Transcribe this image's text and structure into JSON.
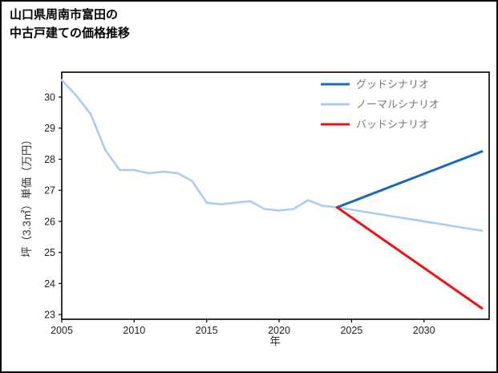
{
  "title": {
    "line1": "山口県周南市富田の",
    "line2": "中古戸建ての価格推移"
  },
  "chart_data": {
    "type": "line",
    "title": "山口県周南市富田の中古戸建ての価格推移",
    "xlabel": "年",
    "ylabel": "坪（3.3㎡）単価（万円）",
    "xlim": [
      2005,
      2034.5
    ],
    "ylim": [
      22.85,
      30.8
    ],
    "xticks": [
      2005,
      2010,
      2015,
      2020,
      2025,
      2030
    ],
    "yticks": [
      23,
      24,
      25,
      26,
      27,
      28,
      29,
      30
    ],
    "grid": false,
    "legend_position": "upper right",
    "series": [
      {
        "id": "normal",
        "name": "ノーマルシナリオ",
        "color": "#a9cdf2",
        "width": 2.6,
        "x": [
          2005,
          2006,
          2007,
          2008,
          2009,
          2010,
          2011,
          2012,
          2013,
          2014,
          2015,
          2016,
          2017,
          2018,
          2019,
          2020,
          2021,
          2022,
          2023,
          2024,
          2034
        ],
        "values": [
          30.55,
          30.05,
          29.45,
          28.3,
          27.65,
          27.65,
          27.55,
          27.6,
          27.55,
          27.3,
          26.6,
          26.55,
          26.6,
          26.65,
          26.4,
          26.35,
          26.4,
          26.68,
          26.5,
          26.45,
          25.7
        ]
      },
      {
        "id": "good",
        "name": "グッドシナリオ",
        "color": "#1868bd",
        "width": 3,
        "x": [
          2024,
          2034
        ],
        "values": [
          26.45,
          28.25
        ]
      },
      {
        "id": "bad",
        "name": "バッドシナリオ",
        "color": "#ee1111",
        "width": 3,
        "x": [
          2024,
          2034
        ],
        "values": [
          26.45,
          23.2
        ]
      }
    ],
    "legend": [
      {
        "label": "グッドシナリオ",
        "color": "#1868bd"
      },
      {
        "label": "ノーマルシナリオ",
        "color": "#a9cdf2"
      },
      {
        "label": "バッドシナリオ",
        "color": "#ee1111"
      }
    ]
  }
}
